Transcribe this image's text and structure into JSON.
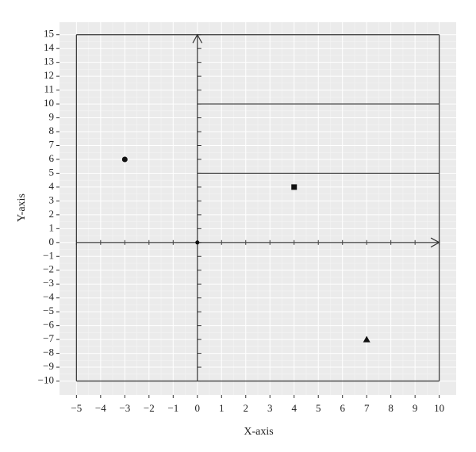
{
  "chart_data": {
    "type": "scatter",
    "x_label": "X-axis",
    "y_label": "Y-axis",
    "xlim": [
      -5.7,
      10.7
    ],
    "ylim": [
      -11,
      15.9
    ],
    "xticks": [
      {
        "value": -5,
        "label": "−5"
      },
      {
        "value": -4,
        "label": "−4"
      },
      {
        "value": -3,
        "label": "−3"
      },
      {
        "value": -2,
        "label": "−2"
      },
      {
        "value": -1,
        "label": "−1"
      },
      0,
      1,
      2,
      3,
      4,
      5,
      6,
      7,
      8,
      9,
      10
    ],
    "yticks": [
      {
        "value": -10,
        "label": "−10"
      },
      {
        "value": -9,
        "label": "−9"
      },
      {
        "value": -8,
        "label": "−8"
      },
      {
        "value": -7,
        "label": "−7"
      },
      {
        "value": -6,
        "label": "−6"
      },
      {
        "value": -5,
        "label": "−5"
      },
      {
        "value": -4,
        "label": "−4"
      },
      {
        "value": -3,
        "label": "−3"
      },
      {
        "value": -2,
        "label": "−2"
      },
      {
        "value": -1,
        "label": "−1"
      },
      0,
      1,
      2,
      3,
      4,
      5,
      6,
      7,
      8,
      9,
      10,
      11,
      12,
      13,
      14,
      15
    ],
    "grid": true,
    "minor_grid": true,
    "background": "#ebebeb",
    "segments": [
      {
        "x": [
          -5,
          10
        ],
        "y": [
          15,
          15
        ]
      },
      {
        "x": [
          -5,
          10
        ],
        "y": [
          -10,
          -10
        ]
      },
      {
        "x": [
          -5,
          -5
        ],
        "y": [
          -10,
          15
        ]
      },
      {
        "x": [
          10,
          10
        ],
        "y": [
          -10,
          15
        ]
      },
      {
        "x": [
          0,
          10
        ],
        "y": [
          10,
          10
        ]
      },
      {
        "x": [
          0,
          10
        ],
        "y": [
          5,
          5
        ]
      },
      {
        "x": [
          -5,
          10
        ],
        "y": [
          0,
          0
        ],
        "arrow": true
      },
      {
        "x": [
          0,
          0
        ],
        "y": [
          -10,
          15
        ],
        "arrow": true
      }
    ],
    "series": [
      {
        "marker": "circle",
        "color": "#111111",
        "x": [
          -3
        ],
        "values": [
          6
        ]
      },
      {
        "marker": "square",
        "color": "#111111",
        "x": [
          4
        ],
        "values": [
          4
        ]
      },
      {
        "marker": "triangle",
        "color": "#111111",
        "x": [
          7
        ],
        "values": [
          -7
        ]
      },
      {
        "marker": "dot",
        "color": "#111111",
        "x": [
          0
        ],
        "values": [
          0
        ]
      }
    ]
  }
}
